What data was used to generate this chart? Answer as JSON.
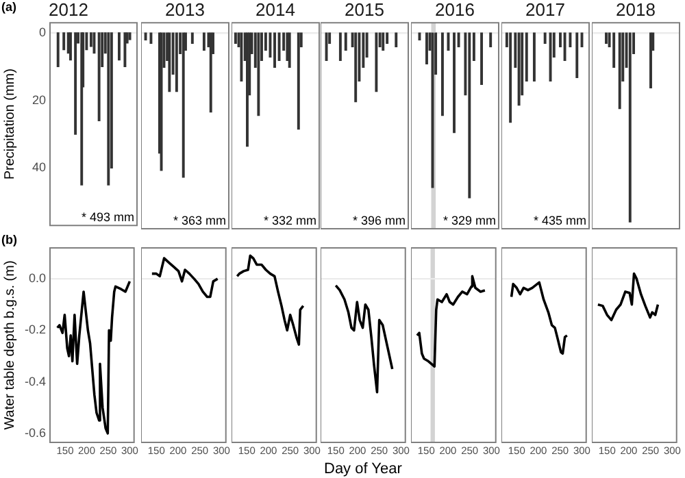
{
  "chart_data": [
    {
      "type": "bar",
      "title": "2012",
      "ylabel": "Precipitation (mm)",
      "x": [
        133,
        146,
        156,
        161,
        172,
        178,
        186,
        189,
        197,
        207,
        214,
        225,
        232,
        239,
        246,
        253,
        270,
        283,
        288,
        294
      ],
      "values": [
        10,
        5,
        6,
        8,
        30,
        3,
        45,
        16,
        5,
        4,
        6,
        26,
        10,
        6,
        45,
        40,
        8,
        10,
        3,
        2
      ],
      "color": "#333333",
      "xlim": [
        115,
        310
      ],
      "ylim": [
        57,
        -3
      ],
      "yticks": [
        0,
        20,
        40
      ],
      "tick_labels": "y",
      "ref_lines": [
        {
          "axis": "y",
          "value": 0,
          "color": "#ebebeb"
        }
      ],
      "annotations": [
        "(a)",
        "* 493 mm"
      ]
    },
    {
      "type": "bar",
      "title": "2013",
      "x": [
        125,
        137,
        156,
        160,
        166,
        173,
        178,
        186,
        194,
        202,
        209,
        214,
        229,
        255,
        265,
        270,
        275
      ],
      "values": [
        2,
        3,
        35,
        40,
        10,
        8,
        17,
        12,
        17,
        6,
        42,
        5,
        3,
        5,
        4,
        23,
        6
      ],
      "color": "#333333",
      "xlim": [
        115,
        310
      ],
      "ylim": [
        57,
        -3
      ],
      "tick_labels": false,
      "ref_lines": [
        {
          "axis": "y",
          "value": 0,
          "color": "#ebebeb"
        }
      ],
      "annotations": [
        "* 363 mm"
      ]
    },
    {
      "type": "bar",
      "title": "2014",
      "x": [
        124,
        131,
        137,
        145,
        150,
        155,
        160,
        168,
        175,
        182,
        191,
        201,
        211,
        221,
        231,
        239,
        244,
        264,
        270
      ],
      "values": [
        3,
        4,
        14,
        8,
        33,
        18,
        6,
        10,
        24,
        8,
        5,
        7,
        10,
        8,
        5,
        8,
        10,
        28,
        4
      ],
      "color": "#333333",
      "xlim": [
        115,
        310
      ],
      "ylim": [
        57,
        -3
      ],
      "tick_labels": false,
      "ref_lines": [
        {
          "axis": "y",
          "value": 0,
          "color": "#ebebeb"
        }
      ],
      "annotations": [
        "* 332 mm"
      ]
    },
    {
      "type": "bar",
      "title": "2015",
      "x": [
        128,
        135,
        159,
        171,
        186,
        193,
        201,
        210,
        218,
        239,
        247,
        254,
        263,
        283
      ],
      "values": [
        8,
        3,
        8,
        5,
        4,
        20,
        14,
        10,
        7,
        17,
        4,
        5,
        3,
        4
      ],
      "color": "#333333",
      "xlim": [
        115,
        310
      ],
      "ylim": [
        57,
        -3
      ],
      "tick_labels": false,
      "ref_lines": [
        {
          "axis": "y",
          "value": 0,
          "color": "#ebebeb"
        }
      ],
      "annotations": [
        "* 396 mm"
      ]
    },
    {
      "type": "bar",
      "title": "2016",
      "x": [
        134,
        150,
        157,
        163,
        170,
        185,
        198,
        211,
        221,
        236,
        245,
        255,
        272,
        292
      ],
      "values": [
        2,
        9,
        5,
        45,
        12,
        24,
        5,
        29,
        4,
        18,
        48,
        8,
        15,
        4
      ],
      "color": "#333333",
      "xlim": [
        115,
        310
      ],
      "ylim": [
        57,
        -3
      ],
      "tick_labels": false,
      "ref_lines": [
        {
          "axis": "y",
          "value": 0,
          "color": "#ebebeb"
        }
      ],
      "bands": [
        {
          "axis": "x",
          "from": 160,
          "to": 170,
          "color": "#d3d3d3"
        }
      ],
      "annotations": [
        "* 329 mm"
      ]
    },
    {
      "type": "bar",
      "title": "2017",
      "x": [
        127,
        135,
        146,
        154,
        161,
        171,
        188,
        212,
        224,
        232,
        246,
        256,
        268,
        283,
        294
      ],
      "values": [
        4,
        26,
        10,
        21,
        18,
        14,
        14,
        3,
        14,
        7,
        4,
        8,
        4,
        13,
        4
      ],
      "color": "#333333",
      "xlim": [
        115,
        310
      ],
      "ylim": [
        57,
        -3
      ],
      "tick_labels": false,
      "ref_lines": [
        {
          "axis": "y",
          "value": 0,
          "color": "#ebebeb"
        }
      ],
      "annotations": [
        "* 435 mm"
      ]
    },
    {
      "type": "bar",
      "title": "2018",
      "x": [
        147,
        154,
        164,
        177,
        184,
        192,
        200,
        208,
        246,
        251
      ],
      "values": [
        3,
        4,
        10,
        22,
        14,
        10,
        55,
        6,
        16,
        5
      ],
      "color": "#333333",
      "xlim": [
        115,
        310
      ],
      "ylim": [
        57,
        -3
      ],
      "tick_labels": false,
      "ref_lines": [
        {
          "axis": "y",
          "value": 0,
          "color": "#ebebeb"
        }
      ]
    },
    {
      "type": "line",
      "ylabel": "Water table depth b.g.s. (m)",
      "x": [
        132,
        137,
        144,
        149,
        155,
        159,
        163,
        167,
        172,
        178,
        183,
        193,
        203,
        208,
        213,
        218,
        223,
        229,
        231,
        237,
        244,
        249,
        252,
        256,
        259,
        264,
        267,
        280,
        290,
        300
      ],
      "values": [
        -0.19,
        -0.18,
        -0.21,
        -0.14,
        -0.27,
        -0.3,
        -0.22,
        -0.32,
        -0.14,
        -0.33,
        -0.22,
        -0.05,
        -0.2,
        -0.25,
        -0.35,
        -0.45,
        -0.52,
        -0.55,
        -0.33,
        -0.5,
        -0.58,
        -0.6,
        -0.2,
        -0.24,
        -0.15,
        -0.05,
        -0.03,
        -0.04,
        -0.05,
        -0.01
      ],
      "color": "#000000",
      "xlim": [
        115,
        310
      ],
      "xticks": [
        150,
        200,
        250,
        300
      ],
      "ylim": [
        -0.635,
        0.12
      ],
      "yticks": [
        {
          "value": -0.6,
          "label": "-0.6"
        },
        {
          "value": -0.4,
          "label": "-0.4"
        },
        {
          "value": -0.2,
          "label": "-0.2"
        },
        {
          "value": 0,
          "label": "0.0"
        }
      ],
      "ref_lines": [
        {
          "axis": "y",
          "value": 0,
          "color": "#ebebeb"
        }
      ],
      "annotations": [
        "(b)"
      ]
    },
    {
      "type": "line",
      "x": [
        140,
        150,
        158,
        168,
        181,
        191,
        201,
        209,
        216,
        226,
        237,
        247,
        257,
        267,
        274,
        281,
        291
      ],
      "values": [
        0.02,
        0.02,
        0.01,
        0.08,
        0.06,
        0.045,
        0.03,
        -0.01,
        0.035,
        0.02,
        0,
        -0.02,
        -0.05,
        -0.07,
        -0.07,
        -0.01,
        0
      ],
      "color": "#000000",
      "xlim": [
        115,
        310
      ],
      "xticks": [
        150,
        200,
        250,
        300
      ],
      "ylim": [
        -0.635,
        0.12
      ],
      "tick_labels": "x",
      "ref_lines": [
        {
          "axis": "y",
          "value": 0,
          "color": "#ebebeb"
        }
      ]
    },
    {
      "type": "line",
      "x": [
        128,
        133,
        143,
        153,
        158,
        165,
        173,
        184,
        194,
        204,
        214,
        222,
        230,
        237,
        243,
        250,
        257,
        265,
        270,
        273,
        280
      ],
      "values": [
        0.01,
        0.02,
        0.03,
        0.035,
        0.09,
        0.08,
        0.055,
        0.055,
        0.035,
        0.02,
        0.01,
        -0.05,
        -0.105,
        -0.16,
        -0.2,
        -0.14,
        -0.18,
        -0.23,
        -0.255,
        -0.12,
        -0.105
      ],
      "color": "#000000",
      "xlim": [
        115,
        310
      ],
      "xticks": [
        150,
        200,
        250,
        300
      ],
      "ylim": [
        -0.635,
        0.12
      ],
      "tick_labels": "x",
      "ref_lines": [
        {
          "axis": "y",
          "value": 0,
          "color": "#ebebeb"
        }
      ]
    },
    {
      "type": "line",
      "xlabel": "Day of Year",
      "x": [
        150,
        159,
        170,
        179,
        186,
        192,
        199,
        205,
        212,
        218,
        225,
        232,
        238,
        245,
        250,
        258,
        269,
        280
      ],
      "values": [
        -0.026,
        -0.044,
        -0.08,
        -0.13,
        -0.19,
        -0.2,
        -0.09,
        -0.16,
        -0.19,
        -0.1,
        -0.12,
        -0.23,
        -0.335,
        -0.44,
        -0.16,
        -0.18,
        -0.265,
        -0.35
      ],
      "color": "#000000",
      "xlim": [
        115,
        310
      ],
      "xticks": [
        150,
        200,
        250,
        300
      ],
      "ylim": [
        -0.635,
        0.12
      ],
      "tick_labels": "x",
      "ref_lines": [
        {
          "axis": "y",
          "value": 0,
          "color": "#ebebeb"
        }
      ]
    },
    {
      "type": "line",
      "x": [
        129,
        134,
        140,
        145,
        155,
        169,
        173,
        176,
        186,
        197,
        204,
        212,
        223,
        233,
        244,
        254,
        256,
        263,
        275,
        285
      ],
      "values": [
        -0.22,
        -0.21,
        -0.29,
        -0.31,
        -0.32,
        -0.34,
        -0.12,
        -0.08,
        -0.09,
        -0.06,
        -0.09,
        -0.1,
        -0.07,
        -0.05,
        -0.06,
        -0.03,
        0.01,
        -0.035,
        -0.05,
        -0.045
      ],
      "color": "#000000",
      "xlim": [
        115,
        310
      ],
      "xticks": [
        150,
        200,
        250,
        300
      ],
      "ylim": [
        -0.635,
        0.12
      ],
      "tick_labels": "x",
      "ref_lines": [
        {
          "axis": "y",
          "value": 0,
          "color": "#ebebeb"
        }
      ],
      "bands": [
        {
          "axis": "x",
          "from": 160,
          "to": 170,
          "color": "#d3d3d3"
        }
      ]
    },
    {
      "type": "line",
      "x": [
        138,
        142,
        150,
        158,
        166,
        176,
        186,
        202,
        212,
        223,
        231,
        238,
        244,
        252,
        256,
        261,
        266
      ],
      "values": [
        -0.07,
        -0.02,
        -0.035,
        -0.06,
        -0.035,
        -0.044,
        -0.035,
        -0.014,
        -0.08,
        -0.13,
        -0.18,
        -0.19,
        -0.23,
        -0.285,
        -0.29,
        -0.226,
        -0.22
      ],
      "color": "#000000",
      "xlim": [
        115,
        310
      ],
      "xticks": [
        150,
        200,
        250,
        300
      ],
      "ylim": [
        -0.635,
        0.12
      ],
      "tick_labels": "x",
      "ref_lines": [
        {
          "axis": "y",
          "value": 0,
          "color": "#ebebeb"
        }
      ]
    },
    {
      "type": "line",
      "x": [
        129,
        140,
        150,
        160,
        171,
        181,
        192,
        202,
        207,
        212,
        218,
        228,
        238,
        249,
        254,
        261,
        267
      ],
      "values": [
        -0.1,
        -0.105,
        -0.14,
        -0.16,
        -0.12,
        -0.1,
        -0.05,
        -0.055,
        -0.1,
        0.02,
        0,
        -0.06,
        -0.105,
        -0.15,
        -0.13,
        -0.14,
        -0.1
      ],
      "color": "#000000",
      "xlim": [
        115,
        310
      ],
      "xticks": [
        150,
        200,
        250,
        300
      ],
      "ylim": [
        -0.635,
        0.12
      ],
      "tick_labels": "x",
      "ref_lines": [
        {
          "axis": "y",
          "value": 0,
          "color": "#ebebeb"
        }
      ]
    }
  ]
}
